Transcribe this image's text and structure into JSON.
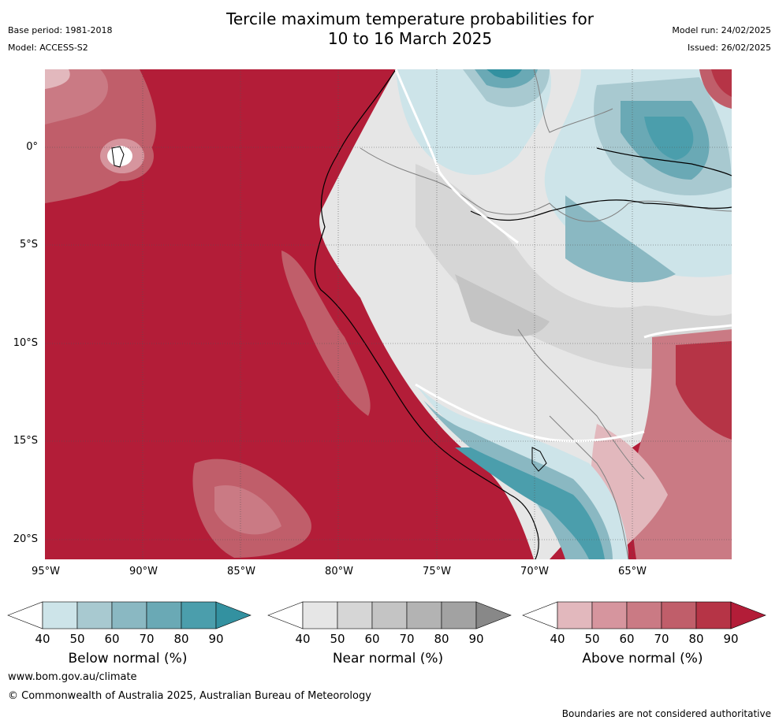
{
  "title_line1": "Tercile maximum temperature probabilities for",
  "title_line2": "10 to 16 March 2025",
  "base_period": "Base period: 1981-2018",
  "model": "Model: ACCESS-S2",
  "model_run": "Model run: 24/02/2025",
  "issued": "Issued: 26/02/2025",
  "lat_labels": [
    "0°",
    "5°S",
    "10°S",
    "15°S",
    "20°S"
  ],
  "lon_labels": [
    "95°W",
    "90°W",
    "85°W",
    "80°W",
    "75°W",
    "70°W",
    "65°W"
  ],
  "colorbars": {
    "below": {
      "title": "Below normal (%)",
      "ticks": [
        "40",
        "50",
        "60",
        "70",
        "80",
        "90"
      ],
      "colors": [
        "#ffffff",
        "#cde4e9",
        "#a8c9d0",
        "#8ab8c2",
        "#6aa9b5",
        "#4b9eac",
        "#3391a0"
      ]
    },
    "near": {
      "title": "Near normal (%)",
      "ticks": [
        "40",
        "50",
        "60",
        "70",
        "80",
        "90"
      ],
      "colors": [
        "#ffffff",
        "#e6e6e6",
        "#d6d6d6",
        "#c4c4c4",
        "#b3b3b3",
        "#a2a2a2",
        "#888888"
      ]
    },
    "above": {
      "title": "Above normal (%)",
      "ticks": [
        "40",
        "50",
        "60",
        "70",
        "80",
        "90"
      ],
      "colors": [
        "#ffffff",
        "#e2b8bd",
        "#d6959e",
        "#ca7a84",
        "#c05e6a",
        "#b63446",
        "#b31d38"
      ]
    }
  },
  "website": "www.bom.gov.au/climate",
  "copyright": "© Commonwealth of Australia 2025, Australian Bureau of Meteorology",
  "disclaimer": "Boundaries are not considered authoritative"
}
